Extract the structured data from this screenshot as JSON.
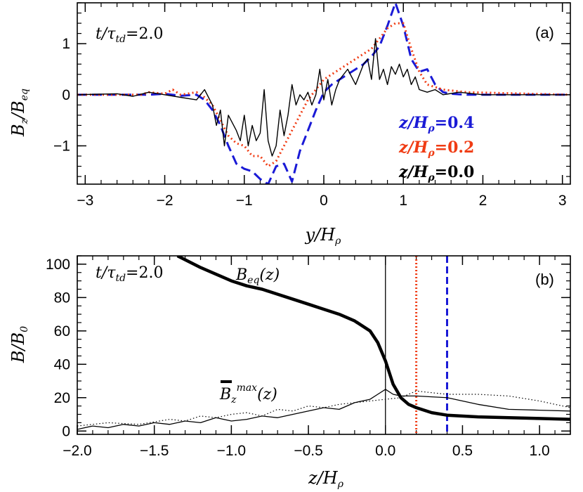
{
  "chart_data": [
    {
      "panel": "(a)",
      "type": "line",
      "time_label": "t/τtd=2.0",
      "xlabel": "y/Hρ",
      "ylabel": "Bz/Beq",
      "xlim": [
        -3.1,
        3.1
      ],
      "ylim": [
        -1.75,
        1.8
      ],
      "xticks": [
        -3,
        -2,
        -1,
        0,
        1,
        2,
        3
      ],
      "yticks": [
        -1,
        0,
        1
      ],
      "legend_position": "lower-right",
      "series": [
        {
          "name": "z/Hρ=0.4",
          "color": "#1a1ad6",
          "dash": "dashed",
          "x": [
            -3.1,
            -2.2,
            -2.0,
            -1.8,
            -1.6,
            -1.5,
            -1.4,
            -1.3,
            -1.2,
            -1.1,
            -1.0,
            -0.9,
            -0.8,
            -0.7,
            -0.6,
            -0.5,
            -0.4,
            -0.3,
            -0.2,
            -0.1,
            0.0,
            0.1,
            0.2,
            0.3,
            0.4,
            0.5,
            0.6,
            0.7,
            0.8,
            0.9,
            1.0,
            1.1,
            1.2,
            1.3,
            1.4,
            1.5,
            1.6,
            1.8,
            2.0,
            3.1
          ],
          "values": [
            0.0,
            0.0,
            0.02,
            -0.02,
            0.0,
            -0.1,
            -0.3,
            -0.6,
            -1.0,
            -1.35,
            -1.45,
            -1.5,
            -1.65,
            -1.75,
            -1.4,
            -1.35,
            -1.7,
            -1.1,
            -0.7,
            -0.3,
            0.05,
            0.2,
            0.3,
            0.4,
            0.5,
            0.6,
            0.75,
            0.95,
            1.35,
            1.8,
            1.35,
            0.7,
            0.45,
            0.5,
            0.2,
            0.05,
            0.02,
            0.0,
            0.0,
            0.0
          ]
        },
        {
          "name": "z/Hρ=0.2",
          "color": "#f03c14",
          "dash": "dotted",
          "x": [
            -3.1,
            -2.3,
            -2.2,
            -2.0,
            -1.9,
            -1.8,
            -1.6,
            -1.5,
            -1.4,
            -1.3,
            -1.2,
            -1.1,
            -1.0,
            -0.9,
            -0.8,
            -0.7,
            -0.6,
            -0.5,
            -0.4,
            -0.3,
            -0.2,
            -0.1,
            0.0,
            0.2,
            0.4,
            0.6,
            0.7,
            0.8,
            0.9,
            1.0,
            1.1,
            1.2,
            1.3,
            1.5,
            1.8,
            3.1
          ],
          "values": [
            0.0,
            0.0,
            0.05,
            0.02,
            0.1,
            0.0,
            0.05,
            -0.05,
            -0.2,
            -0.5,
            -0.8,
            -0.95,
            -1.0,
            -1.2,
            -1.2,
            -1.4,
            -1.3,
            -1.0,
            -0.7,
            -0.4,
            -0.1,
            0.1,
            0.3,
            0.5,
            0.7,
            0.9,
            1.1,
            1.3,
            1.4,
            1.4,
            0.9,
            0.45,
            0.2,
            0.1,
            0.05,
            0.0
          ]
        },
        {
          "name": "z/Hρ=0.0",
          "color": "#000000",
          "dash": "solid",
          "x": [
            -3.1,
            -2.6,
            -2.4,
            -2.2,
            -2.0,
            -1.8,
            -1.6,
            -1.5,
            -1.4,
            -1.35,
            -1.3,
            -1.25,
            -1.2,
            -1.1,
            -1.05,
            -1.0,
            -0.95,
            -0.9,
            -0.85,
            -0.8,
            -0.75,
            -0.7,
            -0.65,
            -0.6,
            -0.55,
            -0.5,
            -0.45,
            -0.4,
            -0.35,
            -0.3,
            -0.25,
            -0.2,
            -0.15,
            -0.1,
            -0.05,
            0.0,
            0.05,
            0.1,
            0.15,
            0.2,
            0.3,
            0.4,
            0.5,
            0.55,
            0.6,
            0.65,
            0.7,
            0.75,
            0.8,
            0.85,
            0.9,
            0.95,
            1.0,
            1.05,
            1.1,
            1.15,
            1.2,
            1.3,
            1.4,
            1.5,
            1.7,
            2.0,
            2.5,
            3.1
          ],
          "values": [
            0.0,
            0.02,
            -0.03,
            0.05,
            0.0,
            -0.05,
            -0.1,
            0.1,
            -0.2,
            -0.6,
            -0.3,
            -1.0,
            -0.4,
            -0.7,
            -0.9,
            -0.4,
            -1.0,
            -0.6,
            -0.9,
            -0.75,
            0.1,
            -0.9,
            -1.2,
            -1.0,
            -0.3,
            -0.8,
            -0.4,
            0.2,
            -0.2,
            0.0,
            -0.1,
            0.05,
            -0.2,
            0.0,
            0.5,
            -0.1,
            0.3,
            -0.2,
            0.1,
            0.3,
            0.5,
            0.2,
            0.6,
            0.7,
            0.3,
            1.1,
            0.3,
            0.5,
            0.2,
            0.55,
            0.4,
            0.6,
            0.35,
            0.5,
            0.2,
            0.35,
            0.1,
            0.05,
            0.1,
            0.0,
            0.05,
            0.0,
            0.0,
            0.0
          ]
        }
      ]
    },
    {
      "panel": "(b)",
      "type": "line",
      "time_label": "t/τtd=2.0",
      "xlabel": "z/Hρ",
      "ylabel": "B/B0",
      "xlim": [
        -2.0,
        1.2
      ],
      "ylim": [
        -2,
        105
      ],
      "xticks": [
        -2.0,
        -1.5,
        -1.0,
        -0.5,
        0.0,
        0.5,
        1.0
      ],
      "yticks": [
        0,
        20,
        40,
        60,
        80,
        100
      ],
      "curve_labels": {
        "beq": "Beq(z)",
        "bmax": "Bzmax(z)"
      },
      "series": [
        {
          "key": "beq",
          "color": "#000000",
          "dash": "solid",
          "width": 4.5,
          "x": [
            -1.35,
            -1.2,
            -1.1,
            -1.0,
            -0.9,
            -0.8,
            -0.7,
            -0.6,
            -0.5,
            -0.4,
            -0.3,
            -0.2,
            -0.1,
            -0.05,
            0.0,
            0.05,
            0.1,
            0.15,
            0.2,
            0.3,
            0.4,
            0.6,
            0.8,
            1.0,
            1.2
          ],
          "values": [
            105,
            98,
            94,
            90,
            87,
            85,
            82,
            79,
            76,
            73,
            70,
            66,
            60,
            53,
            42,
            28,
            20,
            16,
            14,
            11,
            9.5,
            8.5,
            8,
            7.5,
            7
          ]
        },
        {
          "key": "bmax",
          "color": "#000000",
          "dash": "solid",
          "width": 1.3,
          "x": [
            -2.0,
            -1.9,
            -1.8,
            -1.7,
            -1.6,
            -1.5,
            -1.4,
            -1.3,
            -1.2,
            -1.1,
            -1.0,
            -0.9,
            -0.8,
            -0.7,
            -0.6,
            -0.5,
            -0.4,
            -0.3,
            -0.2,
            -0.1,
            -0.05,
            0.0,
            0.05,
            0.1,
            0.2,
            0.3,
            0.4,
            0.5,
            0.6,
            0.8,
            1.0,
            1.2
          ],
          "values": [
            1,
            3,
            2,
            4,
            3,
            5,
            4,
            6,
            5,
            8,
            6,
            7,
            9,
            8,
            10,
            12,
            14,
            13,
            17,
            19,
            22,
            25,
            22,
            21,
            21,
            20.5,
            20,
            18,
            16,
            13,
            12.5,
            12
          ]
        },
        {
          "key": "dotted",
          "color": "#000000",
          "dash": "dotted",
          "width": 1.2,
          "x": [
            -2.0,
            -1.8,
            -1.6,
            -1.4,
            -1.3,
            -1.2,
            -1.1,
            -1.0,
            -0.9,
            -0.8,
            -0.7,
            -0.6,
            -0.5,
            -0.4,
            -0.3,
            -0.2,
            -0.1,
            0.0,
            0.1,
            0.2,
            0.3,
            0.4,
            0.6,
            0.8,
            1.0,
            1.2
          ],
          "values": [
            3,
            5,
            4,
            7,
            6,
            9,
            8,
            10,
            11,
            9,
            13,
            12,
            15,
            14,
            16,
            17,
            18,
            19,
            20,
            24,
            23,
            22,
            22,
            21,
            18,
            14
          ]
        }
      ],
      "vlines": [
        {
          "x": 0.0,
          "color": "#000000",
          "dash": "solid"
        },
        {
          "x": 0.2,
          "color": "#f03c14",
          "dash": "dotted"
        },
        {
          "x": 0.4,
          "color": "#1a1ad6",
          "dash": "dashed"
        }
      ]
    }
  ]
}
